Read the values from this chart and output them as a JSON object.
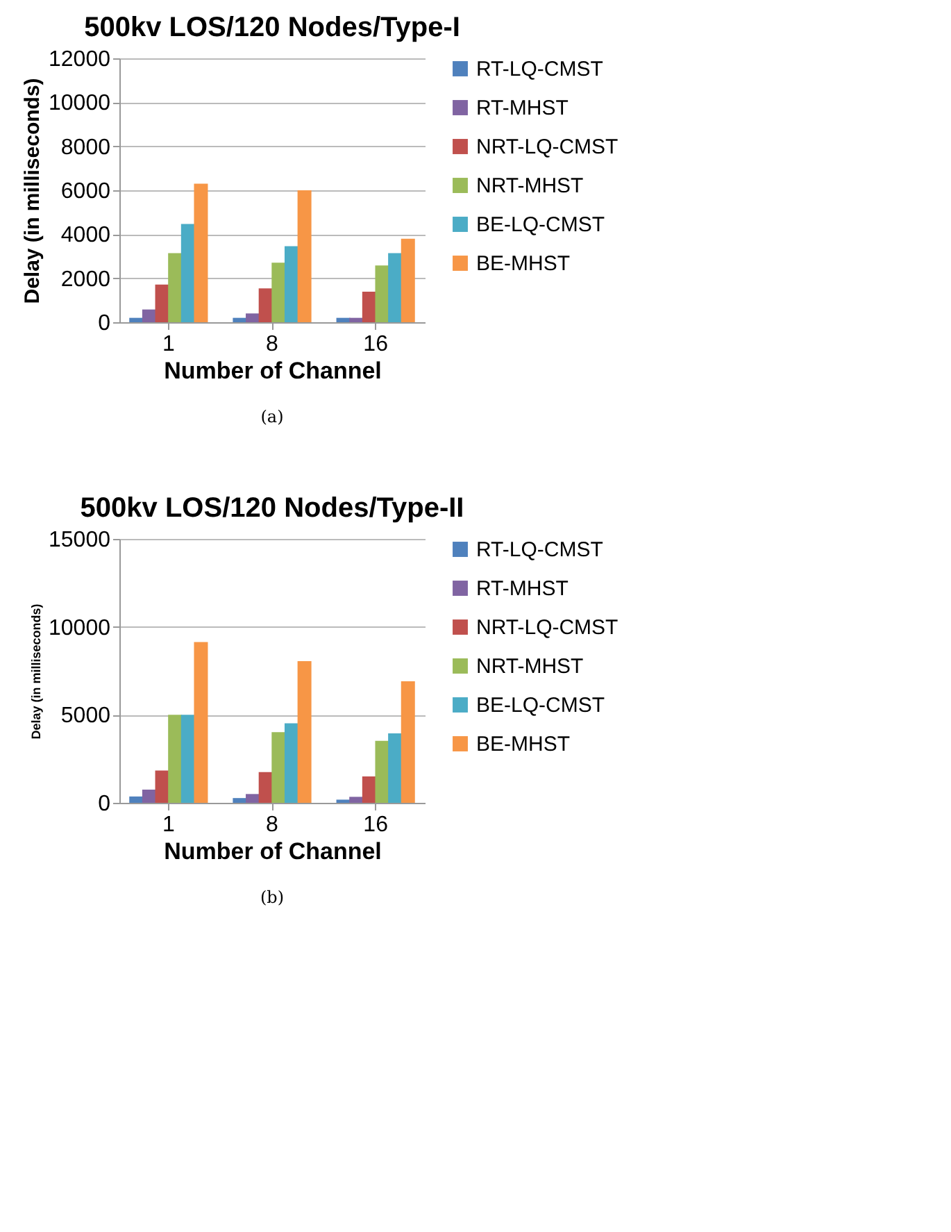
{
  "chart_data": [
    {
      "type": "bar",
      "title": "500kv LOS/120 Nodes/Type-I",
      "xlabel": "Number of Channel",
      "ylabel": "Delay (in milliseconds)",
      "categories": [
        "1",
        "8",
        "16"
      ],
      "ylim": [
        0,
        12000
      ],
      "yticks": [
        0,
        2000,
        4000,
        6000,
        8000,
        10000,
        12000
      ],
      "grid": "y",
      "legend": "right",
      "annotations": [
        "(a)"
      ],
      "series": [
        {
          "name": "RT-LQ-CMST",
          "color": "#4f81bd",
          "values": [
            200,
            200,
            200
          ]
        },
        {
          "name": "RT-MHST",
          "color": "#8064a2",
          "values": [
            580,
            400,
            200
          ]
        },
        {
          "name": "NRT-LQ-CMST",
          "color": "#c0504d",
          "values": [
            1710,
            1540,
            1390
          ]
        },
        {
          "name": "NRT-MHST",
          "color": "#9bbb59",
          "values": [
            3140,
            2710,
            2580
          ]
        },
        {
          "name": "BE-LQ-CMST",
          "color": "#4bacc6",
          "values": [
            4470,
            3460,
            3140
          ]
        },
        {
          "name": "BE-MHST",
          "color": "#f79646",
          "values": [
            6300,
            6000,
            3800
          ]
        }
      ]
    },
    {
      "type": "bar",
      "title": "500kv LOS/120 Nodes/Type-II",
      "xlabel": "Number of Channel",
      "ylabel": "Delay (in milliseconds)",
      "categories": [
        "1",
        "8",
        "16"
      ],
      "ylim": [
        0,
        15000
      ],
      "yticks": [
        0,
        5000,
        10000,
        15000
      ],
      "grid": "y",
      "legend": "right",
      "annotations": [
        "(b)"
      ],
      "series": [
        {
          "name": "RT-LQ-CMST",
          "color": "#4f81bd",
          "values": [
            360,
            270,
            180
          ]
        },
        {
          "name": "RT-MHST",
          "color": "#8064a2",
          "values": [
            750,
            500,
            340
          ]
        },
        {
          "name": "NRT-LQ-CMST",
          "color": "#c0504d",
          "values": [
            1840,
            1750,
            1500
          ]
        },
        {
          "name": "NRT-MHST",
          "color": "#9bbb59",
          "values": [
            5000,
            4020,
            3520
          ]
        },
        {
          "name": "BE-LQ-CMST",
          "color": "#4bacc6",
          "values": [
            5000,
            4520,
            3950
          ]
        },
        {
          "name": "BE-MHST",
          "color": "#f79646",
          "values": [
            9140,
            8050,
            6910
          ]
        }
      ]
    }
  ]
}
